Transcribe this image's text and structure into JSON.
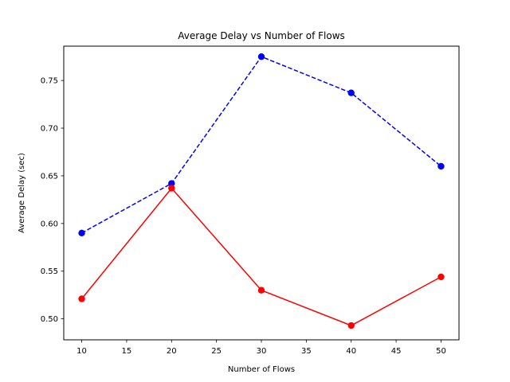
{
  "chart_data": {
    "type": "line",
    "title": "Average Delay vs Number of Flows",
    "xlabel": "Number of Flows",
    "ylabel": "Average Delay (sec)",
    "x": [
      10,
      20,
      30,
      40,
      50
    ],
    "xlim": [
      8,
      52
    ],
    "ylim": [
      0.478,
      0.786
    ],
    "xticks": [
      10,
      15,
      20,
      25,
      30,
      35,
      40,
      45,
      50
    ],
    "yticks": [
      0.5,
      0.55,
      0.6,
      0.65,
      0.7,
      0.75
    ],
    "grid": false,
    "series": [
      {
        "values": [
          0.59,
          0.642,
          0.775,
          0.737,
          0.66
        ],
        "color": "#0000ff",
        "linestyle": "dashed",
        "marker": "circle"
      },
      {
        "values": [
          0.521,
          0.637,
          0.53,
          0.493,
          0.544
        ],
        "color": "#ff0000",
        "linestyle": "solid",
        "marker": "circle"
      }
    ]
  }
}
